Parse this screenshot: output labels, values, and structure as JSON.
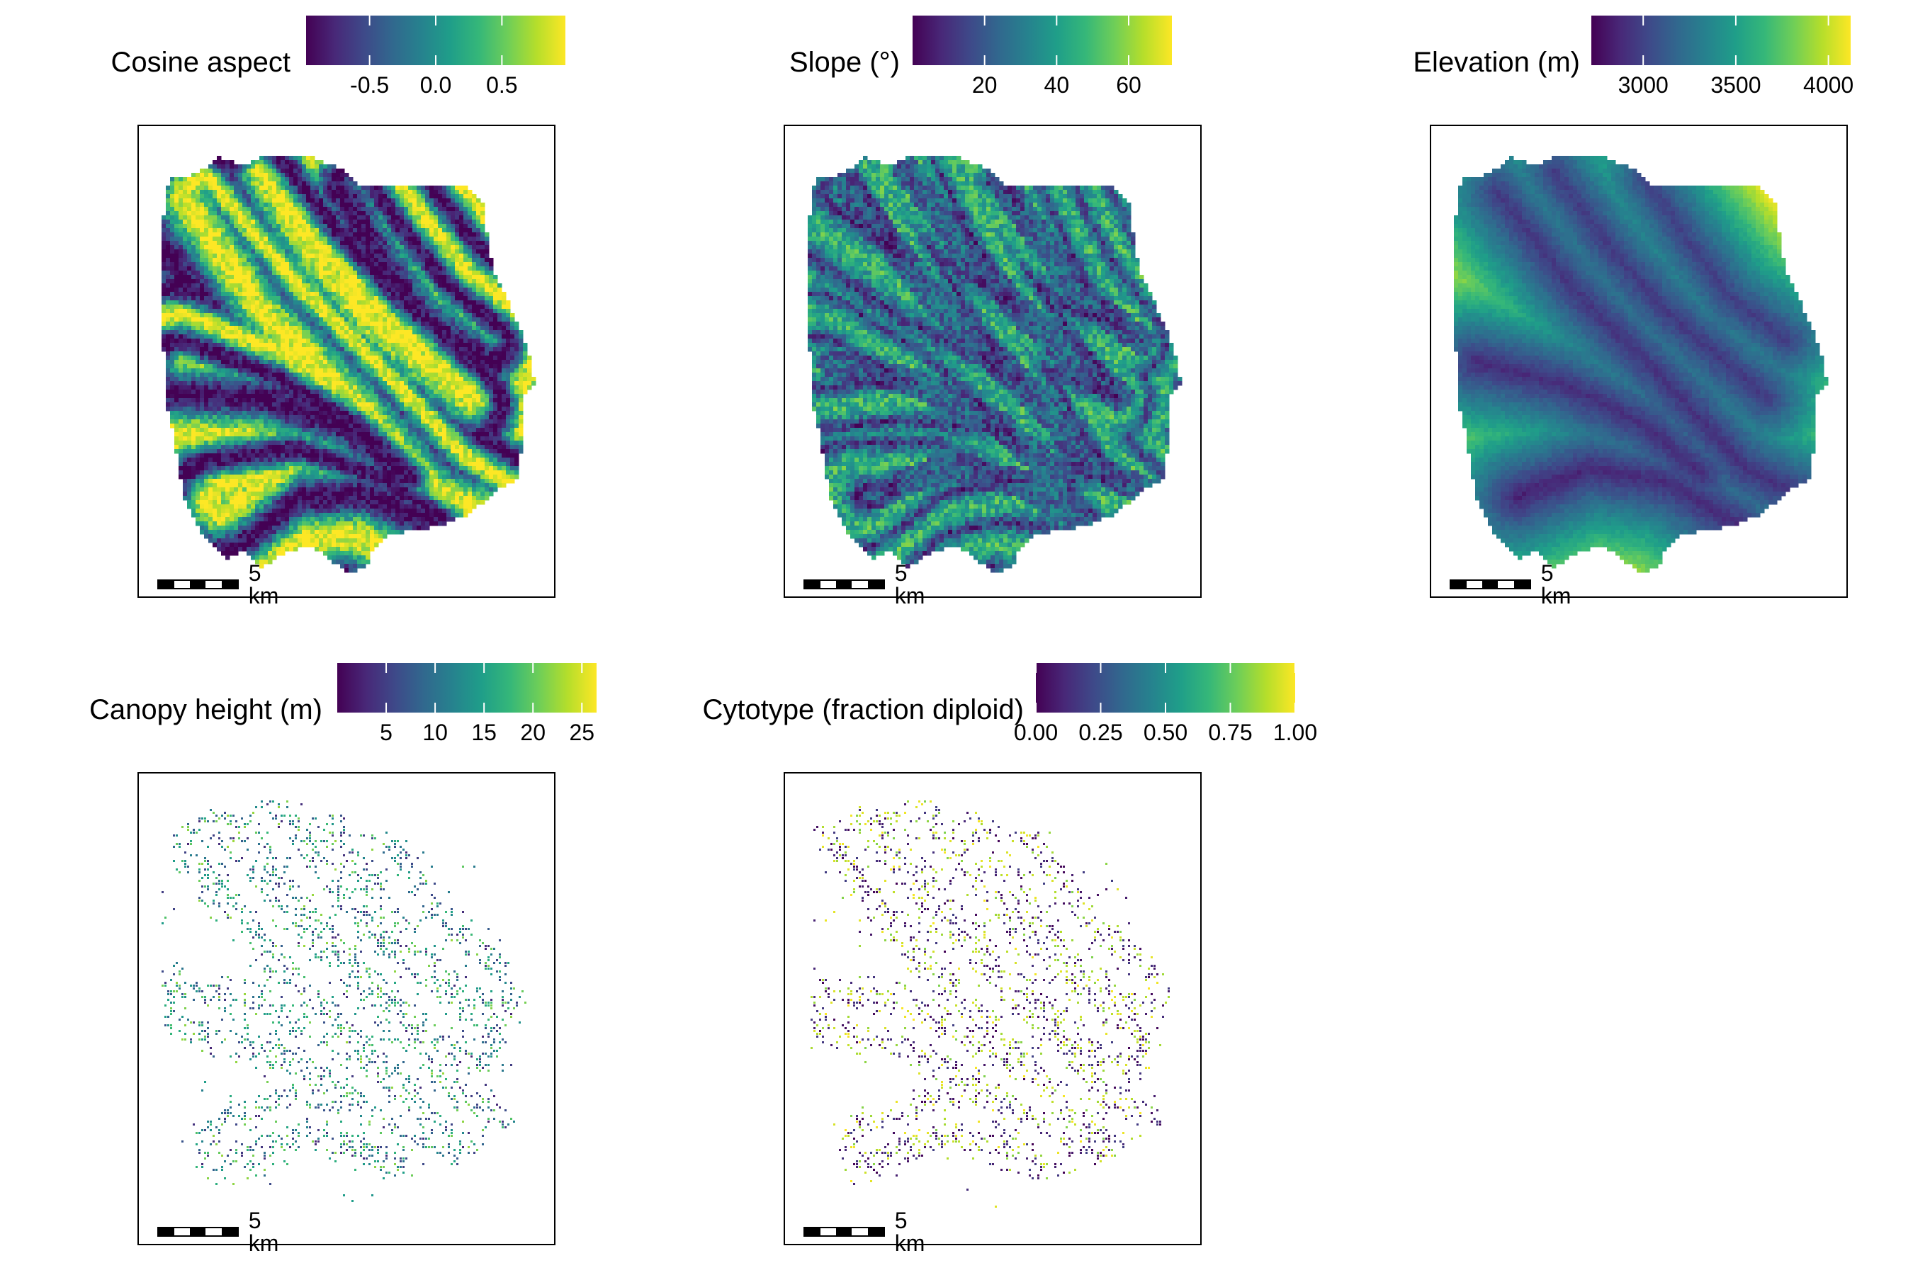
{
  "colors": {
    "viridis": [
      "#440154",
      "#482878",
      "#3e4989",
      "#31688e",
      "#26828e",
      "#1f9e89",
      "#35b779",
      "#6ece58",
      "#b5de2b",
      "#fde725"
    ]
  },
  "panels": [
    {
      "id": "cosine-aspect",
      "title": "Cosine aspect",
      "ticks": [
        "-0.5",
        "0.0",
        "0.5"
      ],
      "tick_values": [
        -0.5,
        0.0,
        0.5
      ],
      "range": [
        -0.98,
        0.98
      ],
      "layer": "aspect",
      "scale_label": "5 km"
    },
    {
      "id": "slope",
      "title": "Slope (°)",
      "ticks": [
        "20",
        "40",
        "60"
      ],
      "tick_values": [
        20,
        40,
        60
      ],
      "range": [
        0,
        72
      ],
      "layer": "slope",
      "scale_label": "5 km"
    },
    {
      "id": "elevation",
      "title": "Elevation (m)",
      "ticks": [
        "3000",
        "3500",
        "4000"
      ],
      "tick_values": [
        3000,
        3500,
        4000
      ],
      "range": [
        2720,
        4120
      ],
      "layer": "elevation",
      "scale_label": "5 km"
    },
    {
      "id": "canopy-height",
      "title": "Canopy height (m)",
      "ticks": [
        "5",
        "10",
        "15",
        "20",
        "25"
      ],
      "tick_values": [
        5,
        10,
        15,
        20,
        25
      ],
      "range": [
        0,
        26.5
      ],
      "layer": "canopy",
      "scale_label": "5 km"
    },
    {
      "id": "cytotype",
      "title": "Cytotype (fraction diploid)",
      "ticks": [
        "0.00",
        "0.25",
        "0.50",
        "0.75",
        "1.00"
      ],
      "tick_values": [
        0,
        0.25,
        0.5,
        0.75,
        1.0
      ],
      "range": [
        0,
        1
      ],
      "layer": "cytotype",
      "scale_label": "5 km"
    }
  ]
}
